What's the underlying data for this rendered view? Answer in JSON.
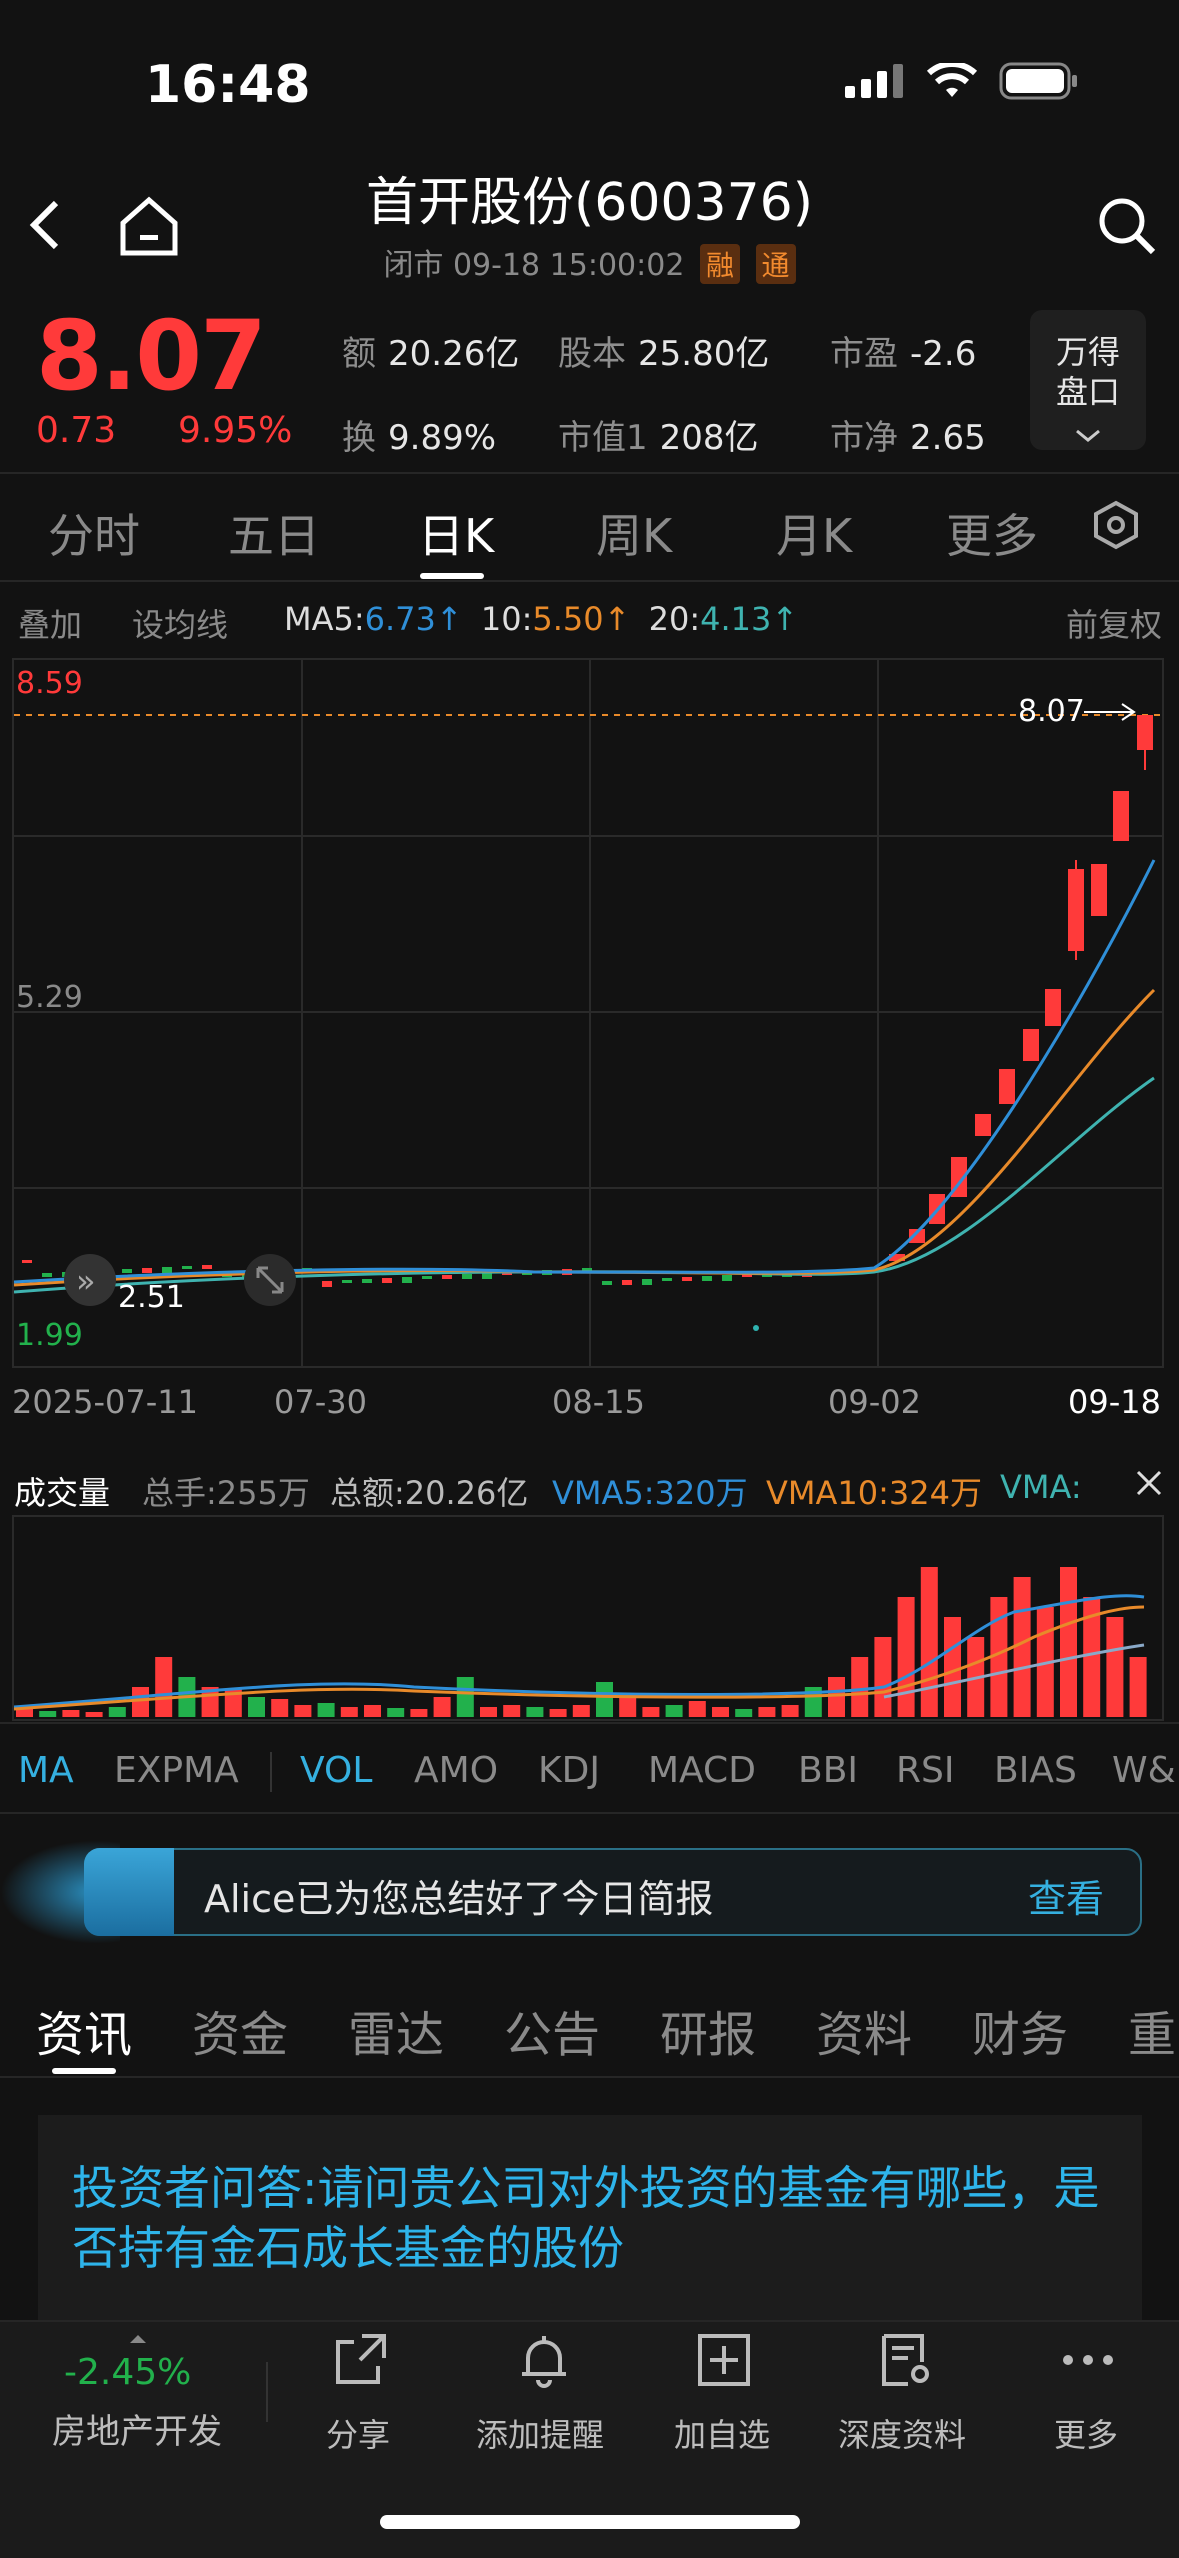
{
  "status": {
    "time": "16:48"
  },
  "header": {
    "title": "首开股份(600376)",
    "subtitle": "闭市  09-18 15:00:02",
    "tag_margin": "融",
    "tag_connect": "通"
  },
  "quote": {
    "price": "8.07",
    "change": "0.73",
    "change_pct": "9.95%",
    "stats": [
      {
        "key": "额",
        "value": "20.26亿"
      },
      {
        "key": "股本",
        "value": "25.80亿"
      },
      {
        "key": "市盈",
        "value": "-2.6"
      },
      {
        "key": "换",
        "value": "9.89%"
      },
      {
        "key": "市值1",
        "value": "208亿"
      },
      {
        "key": "市净",
        "value": "2.65"
      }
    ],
    "wande_line1": "万得",
    "wande_line2": "盘口"
  },
  "ktabs": [
    "分时",
    "五日",
    "日K",
    "周K",
    "月K",
    "更多"
  ],
  "ma_row": {
    "overlay": "叠加",
    "set_ma": "设均线",
    "ma5_label": "MA5:",
    "ma5_value": "6.73↑",
    "ma10_label": "10:",
    "ma10_value": "5.50↑",
    "ma20_label": "20:",
    "ma20_value": "4.13↑",
    "adjust": "前复权"
  },
  "chart_labels": {
    "high": "8.59",
    "mid": "5.29",
    "low": "1.99",
    "last_price": "8.07",
    "min_marker": "2.51"
  },
  "x_axis": [
    "2025-07-11",
    "07-30",
    "08-15",
    "09-02",
    "09-18"
  ],
  "volume_row": {
    "title": "成交量",
    "total_hands": "总手:255万",
    "total_amount": "总额:20.26亿",
    "vma5": "VMA5:320万",
    "vma10": "VMA10:324万",
    "vma20": "VMA:"
  },
  "indicators": [
    "MA",
    "EXPMA",
    "VOL",
    "AMO",
    "KDJ",
    "MACD",
    "BBI",
    "RSI",
    "BIAS",
    "W&"
  ],
  "alice": {
    "text": "Alice已为您总结好了今日简报",
    "button": "查看"
  },
  "news_tabs": [
    "资讯",
    "资金",
    "雷达",
    "公告",
    "研报",
    "资料",
    "财务",
    "重"
  ],
  "news": {
    "title": "投资者问答:请问贵公司对外投资的基金有哪些，是否持有金石成长基金的股份"
  },
  "bottom": {
    "sector_pct": "-2.45%",
    "sector_name": "房地产开发",
    "items": [
      "分享",
      "添加提醒",
      "加自选",
      "深度资料",
      "更多"
    ]
  },
  "colors": {
    "up": "#ff3a3a",
    "down": "#22b14c",
    "ma5": "#2f8fd8",
    "ma10": "#e88a2a",
    "ma20": "#3fb3b0",
    "accent": "#35b0e0"
  },
  "chart_data": {
    "type": "candlestick",
    "ylim": [
      1.99,
      8.59
    ],
    "candles_recent": [
      {
        "date": "09-02",
        "close": 2.62
      },
      {
        "date": "09-08",
        "close": 3.62
      },
      {
        "date": "09-11",
        "close": 5.3
      },
      {
        "date": "09-15",
        "close": 6.67
      },
      {
        "date": "09-18",
        "close": 8.07
      }
    ],
    "ma": {
      "MA5": 6.73,
      "MA10": 5.5,
      "MA20": 4.13
    }
  }
}
